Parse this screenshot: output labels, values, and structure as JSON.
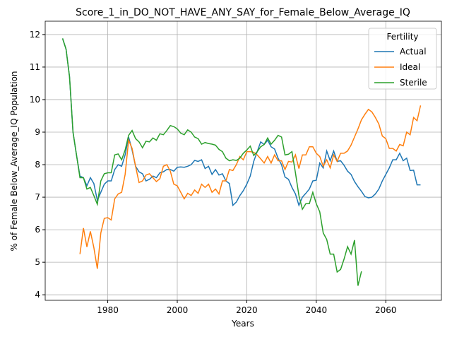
{
  "chart_data": {
    "type": "line",
    "title": "Score_1_in_DO_NOT_HAVE_ANY_SAY_for_Female_Below_Average_IQ",
    "xlabel": "Years",
    "ylabel": "% of Female Below_Average_IQ Population",
    "legend_title": "Fertility",
    "legend": "upper right",
    "grid": true,
    "xlim": [
      1962,
      2076
    ],
    "ylim": [
      3.83,
      12.41
    ],
    "xticks": [
      1980,
      2000,
      2020,
      2040,
      2060
    ],
    "yticks": [
      4,
      5,
      6,
      7,
      8,
      9,
      10,
      11,
      12
    ],
    "x": [
      1967,
      1968,
      1969,
      1970,
      1971,
      1972,
      1973,
      1974,
      1975,
      1976,
      1977,
      1978,
      1979,
      1980,
      1981,
      1982,
      1983,
      1984,
      1985,
      1986,
      1987,
      1988,
      1989,
      1990,
      1991,
      1992,
      1993,
      1994,
      1995,
      1996,
      1997,
      1998,
      1999,
      2000,
      2001,
      2002,
      2003,
      2004,
      2005,
      2006,
      2007,
      2008,
      2009,
      2010,
      2011,
      2012,
      2013,
      2014,
      2015,
      2016,
      2017,
      2018,
      2019,
      2020,
      2021,
      2022,
      2023,
      2024,
      2025,
      2026,
      2027,
      2028,
      2029,
      2030,
      2031,
      2032,
      2033,
      2034,
      2035,
      2036,
      2037,
      2038,
      2039,
      2040,
      2041,
      2042,
      2043,
      2044,
      2045,
      2046,
      2047,
      2048,
      2049,
      2050,
      2051,
      2052,
      2053,
      2054,
      2055,
      2056,
      2057,
      2058,
      2059,
      2060,
      2061,
      2062,
      2063,
      2064,
      2065,
      2066,
      2067,
      2068,
      2069,
      2070
    ],
    "series": [
      {
        "name": "Actual",
        "color": "#1f77b4",
        "values": [
          11.88,
          11.55,
          10.7,
          9.0,
          8.3,
          7.65,
          7.6,
          7.35,
          7.6,
          7.42,
          6.9,
          7.15,
          7.4,
          7.5,
          7.5,
          7.85,
          8.0,
          7.95,
          8.3,
          8.85,
          8.45,
          7.95,
          7.78,
          7.72,
          7.5,
          7.55,
          7.65,
          7.6,
          7.75,
          7.78,
          7.85,
          7.85,
          7.8,
          7.92,
          7.93,
          7.92,
          7.95,
          8.0,
          8.13,
          8.1,
          8.15,
          7.88,
          7.95,
          7.7,
          7.85,
          7.68,
          7.72,
          7.5,
          7.42,
          6.75,
          6.85,
          7.05,
          7.2,
          7.4,
          7.65,
          8.1,
          8.4,
          8.7,
          8.62,
          8.75,
          8.55,
          8.48,
          8.2,
          8.0,
          7.62,
          7.55,
          7.3,
          7.1,
          6.75,
          7.0,
          7.12,
          7.25,
          7.5,
          7.52,
          8.05,
          7.9,
          8.42,
          8.12,
          8.42,
          8.1,
          8.12,
          7.98,
          7.8,
          7.7,
          7.48,
          7.32,
          7.18,
          7.02,
          6.98,
          7.0,
          7.1,
          7.25,
          7.5,
          7.7,
          7.9,
          8.15,
          8.15,
          8.35,
          8.12,
          8.2,
          7.82,
          7.83,
          7.38,
          7.38
        ]
      },
      {
        "name": "Ideal",
        "color": "#ff7f0e",
        "values": [
          null,
          null,
          null,
          null,
          null,
          5.25,
          6.05,
          5.47,
          5.95,
          5.45,
          4.8,
          5.9,
          6.35,
          6.37,
          6.3,
          6.95,
          7.1,
          7.15,
          7.7,
          8.75,
          8.5,
          7.95,
          7.45,
          7.5,
          7.68,
          7.72,
          7.6,
          7.48,
          7.57,
          7.95,
          8.0,
          7.8,
          7.4,
          7.35,
          7.15,
          6.95,
          7.12,
          7.05,
          7.22,
          7.12,
          7.4,
          7.3,
          7.4,
          7.15,
          7.25,
          7.1,
          7.5,
          7.5,
          7.85,
          7.82,
          8.0,
          8.25,
          8.15,
          8.4,
          8.4,
          8.38,
          8.3,
          8.18,
          8.05,
          8.25,
          8.05,
          8.3,
          8.12,
          8.12,
          7.85,
          8.1,
          8.08,
          8.3,
          7.88,
          8.3,
          8.3,
          8.55,
          8.55,
          8.35,
          8.25,
          7.95,
          8.15,
          7.9,
          8.3,
          8.1,
          8.35,
          8.35,
          8.42,
          8.6,
          8.85,
          9.1,
          9.38,
          9.55,
          9.7,
          9.62,
          9.45,
          9.25,
          8.88,
          8.8,
          8.5,
          8.5,
          8.42,
          8.62,
          8.58,
          9.0,
          8.92,
          9.45,
          9.35,
          9.82
        ]
      },
      {
        "name": "Sterile",
        "color": "#2ca02c",
        "values": [
          11.88,
          11.55,
          10.7,
          9.0,
          8.3,
          7.6,
          7.6,
          7.25,
          7.3,
          7.05,
          6.78,
          7.5,
          7.72,
          7.75,
          7.75,
          8.3,
          8.33,
          8.15,
          8.45,
          8.9,
          9.05,
          8.8,
          8.7,
          8.52,
          8.72,
          8.7,
          8.82,
          8.75,
          8.95,
          8.92,
          9.05,
          9.2,
          9.17,
          9.1,
          8.97,
          8.92,
          9.07,
          9.0,
          8.85,
          8.8,
          8.63,
          8.68,
          8.65,
          8.63,
          8.6,
          8.47,
          8.4,
          8.2,
          8.12,
          8.15,
          8.13,
          8.2,
          8.35,
          8.45,
          8.57,
          8.28,
          8.4,
          8.55,
          8.62,
          8.82,
          8.63,
          8.75,
          8.9,
          8.85,
          8.3,
          8.32,
          8.4,
          7.75,
          7.05,
          6.63,
          6.8,
          6.8,
          7.15,
          6.8,
          6.55,
          5.9,
          5.7,
          5.25,
          5.25,
          4.7,
          4.78,
          5.1,
          5.48,
          5.25,
          5.68,
          4.28,
          4.72,
          null,
          null,
          null,
          null,
          null,
          null,
          null,
          null,
          null,
          null,
          null,
          null,
          null,
          null,
          null,
          null,
          null
        ]
      }
    ]
  }
}
